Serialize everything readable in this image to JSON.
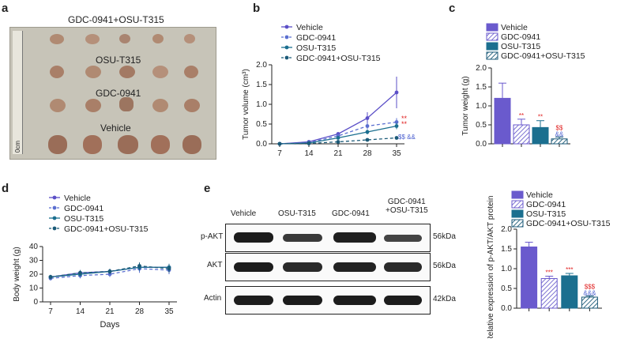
{
  "panels": {
    "a": {
      "letter": "a",
      "row_labels": [
        "GDC-0941+OSU-T315",
        "OSU-T315",
        "GDC-0941",
        "Vehicle"
      ],
      "ruler_label": "0cm"
    },
    "b": {
      "letter": "b"
    },
    "c": {
      "letter": "c"
    },
    "d": {
      "letter": "d"
    },
    "e": {
      "letter": "e",
      "lane_labels": [
        "Vehicle",
        "OSU-T315",
        "GDC-0941",
        "GDC-0941\n+OSU-T315"
      ],
      "rows": [
        {
          "label": "p-AKT",
          "kda": "56kDa"
        },
        {
          "label": "AKT",
          "kda": "56kDa"
        },
        {
          "label": "Actin",
          "kda": "42kDa"
        }
      ]
    }
  },
  "colors": {
    "vehicle": "#6a5acd",
    "gdc": "#6a5acd",
    "osu": "#1b6f8f",
    "combo": "#1b5a78",
    "star": "#e02020",
    "dollar": "#e02020",
    "amp": "#4b5fcf"
  },
  "chart_data": [
    {
      "id": "b",
      "type": "line",
      "xlabel": "Days",
      "ylabel": "Tumor volume (cm³)",
      "x": [
        7,
        14,
        21,
        28,
        35
      ],
      "ylim": [
        0,
        2.0
      ],
      "yticks": [
        "0.0",
        "0.5",
        "1.0",
        "1.5",
        "2.0"
      ],
      "series": [
        {
          "name": "Vehicle",
          "values": [
            0.0,
            0.05,
            0.25,
            0.65,
            1.3
          ],
          "err": [
            0,
            0.02,
            0.05,
            0.15,
            0.4
          ],
          "dash": false
        },
        {
          "name": "GDC-0941",
          "values": [
            0.0,
            0.03,
            0.2,
            0.45,
            0.55
          ],
          "err": [
            0,
            0.02,
            0.04,
            0.08,
            0.1
          ],
          "dash": true
        },
        {
          "name": "OSU-T315",
          "values": [
            0.0,
            0.02,
            0.15,
            0.3,
            0.45
          ],
          "err": [
            0,
            0.01,
            0.03,
            0.06,
            0.08
          ],
          "dash": false
        },
        {
          "name": "GDC-0941+OSU-T315",
          "values": [
            0.0,
            0.01,
            0.05,
            0.1,
            0.15
          ],
          "err": [
            0,
            0.01,
            0.01,
            0.02,
            0.03
          ],
          "dash": true
        }
      ],
      "annotations": [
        "**",
        "**",
        "$$ &&"
      ]
    },
    {
      "id": "c",
      "type": "bar",
      "ylabel": "Tumor weight (g)",
      "categories": [
        "Vehicle",
        "GDC-0941",
        "OSU-T315",
        "GDC-0941+OSU-T315"
      ],
      "values": [
        1.2,
        0.5,
        0.43,
        0.13
      ],
      "err": [
        0.4,
        0.15,
        0.18,
        0.05
      ],
      "ylim": [
        0,
        2.0
      ],
      "yticks": [
        "0.0",
        "0.5",
        "1.0",
        "1.5",
        "2.0"
      ],
      "marks": [
        [
          "",
          ""
        ],
        [
          "**",
          ""
        ],
        [
          "**",
          ""
        ],
        [
          "$$",
          "&&"
        ]
      ]
    },
    {
      "id": "d",
      "type": "line",
      "xlabel": "Days",
      "ylabel": "Body weight (g)",
      "x": [
        7,
        14,
        21,
        28,
        35
      ],
      "ylim": [
        0,
        40
      ],
      "yticks": [
        "0",
        "10",
        "20",
        "30",
        "40"
      ],
      "series": [
        {
          "name": "Vehicle",
          "values": [
            18,
            21,
            22,
            25,
            25
          ],
          "err": [
            1.5,
            2,
            1.5,
            3,
            2.5
          ],
          "dash": false
        },
        {
          "name": "GDC-0941",
          "values": [
            17,
            19,
            20,
            24,
            23
          ],
          "err": [
            1.5,
            2,
            2,
            3,
            3
          ],
          "dash": true
        },
        {
          "name": "OSU-T315",
          "values": [
            18,
            20,
            22,
            25,
            25
          ],
          "err": [
            1.5,
            1.5,
            1.5,
            2.5,
            2.5
          ],
          "dash": false
        },
        {
          "name": "GDC-0941+OSU-T315",
          "values": [
            18,
            21,
            22,
            26,
            24
          ],
          "err": [
            1.5,
            2,
            2,
            2.5,
            3
          ],
          "dash": true
        }
      ]
    },
    {
      "id": "e",
      "type": "bar",
      "ylabel": "Relative expression of p-AKT/AKT protein",
      "categories": [
        "Vehicle",
        "GDC-0941",
        "OSU-T315",
        "GDC-0941+OSU-T315"
      ],
      "values": [
        1.55,
        0.75,
        0.82,
        0.28
      ],
      "err": [
        0.12,
        0.06,
        0.06,
        0.03
      ],
      "ylim": [
        0,
        2.0
      ],
      "yticks": [
        "0.0",
        "0.5",
        "1.0",
        "1.5",
        "2.0"
      ],
      "marks": [
        [
          "",
          ""
        ],
        [
          "***",
          ""
        ],
        [
          "***",
          ""
        ],
        [
          "$$$",
          "&&&"
        ]
      ]
    }
  ]
}
